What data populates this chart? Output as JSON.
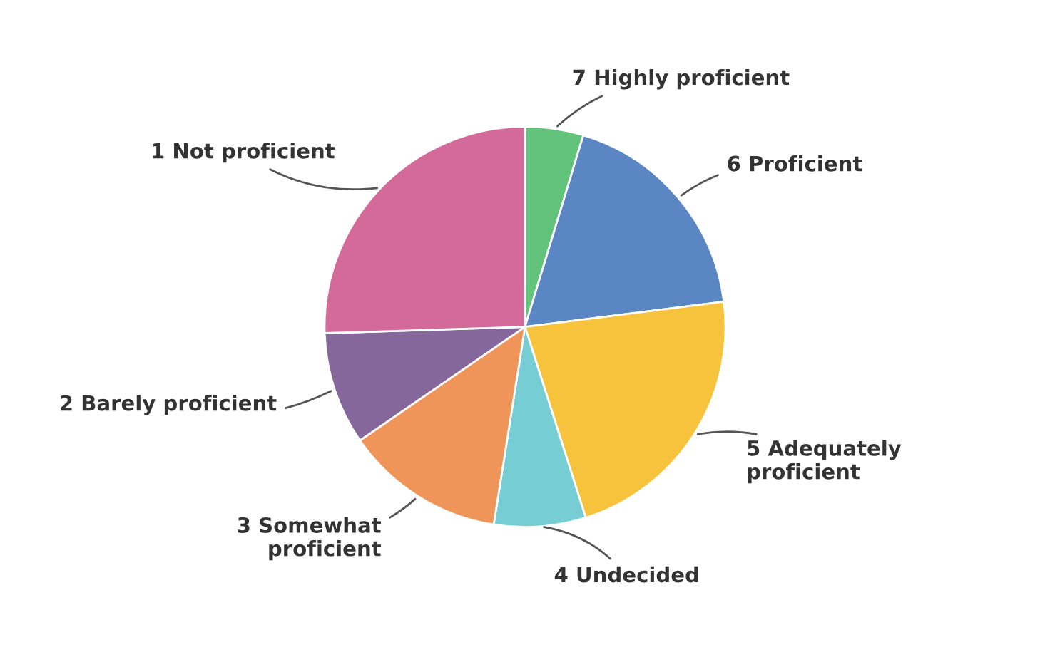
{
  "chart_data": {
    "type": "pie",
    "categories": [
      "7 Highly proficient",
      "6 Proficient",
      "5 Adequately\nproficient",
      "4 Undecided",
      "3 Somewhat\nproficient",
      "2 Barely proficient",
      "1 Not proficient"
    ],
    "values": [
      4.7,
      18.3,
      22.1,
      7.4,
      12.9,
      9.1,
      25.5
    ],
    "colors": [
      "#62c47a",
      "#5a87c4",
      "#f7c33d",
      "#76cdd3",
      "#f0955a",
      "#86679c",
      "#d46a9a"
    ]
  }
}
